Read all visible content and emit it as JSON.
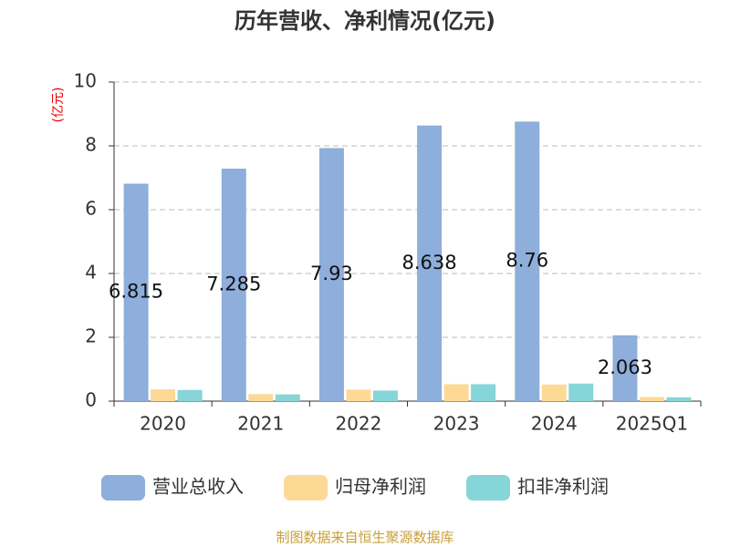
{
  "chart_data": {
    "type": "bar",
    "title": "历年营收、净利情况(亿元)",
    "y_axis_label": "(亿元)",
    "categories": [
      "2020",
      "2021",
      "2022",
      "2023",
      "2024",
      "2025Q1"
    ],
    "series": [
      {
        "name": "营业总收入",
        "color": "#8eaedb",
        "values": [
          6.815,
          7.285,
          7.93,
          8.638,
          8.76,
          2.063
        ]
      },
      {
        "name": "归母净利润",
        "color": "#fdd996",
        "values": [
          0.37,
          0.22,
          0.36,
          0.53,
          0.52,
          0.13
        ]
      },
      {
        "name": "扣非净利润",
        "color": "#86d5d8",
        "values": [
          0.35,
          0.21,
          0.33,
          0.53,
          0.55,
          0.12
        ]
      }
    ],
    "labeled_series": 0,
    "ylim": [
      0,
      10
    ],
    "yticks": [
      0,
      2,
      4,
      6,
      8,
      10
    ],
    "grid": true,
    "source": "制图数据来自恒生聚源数据库"
  }
}
